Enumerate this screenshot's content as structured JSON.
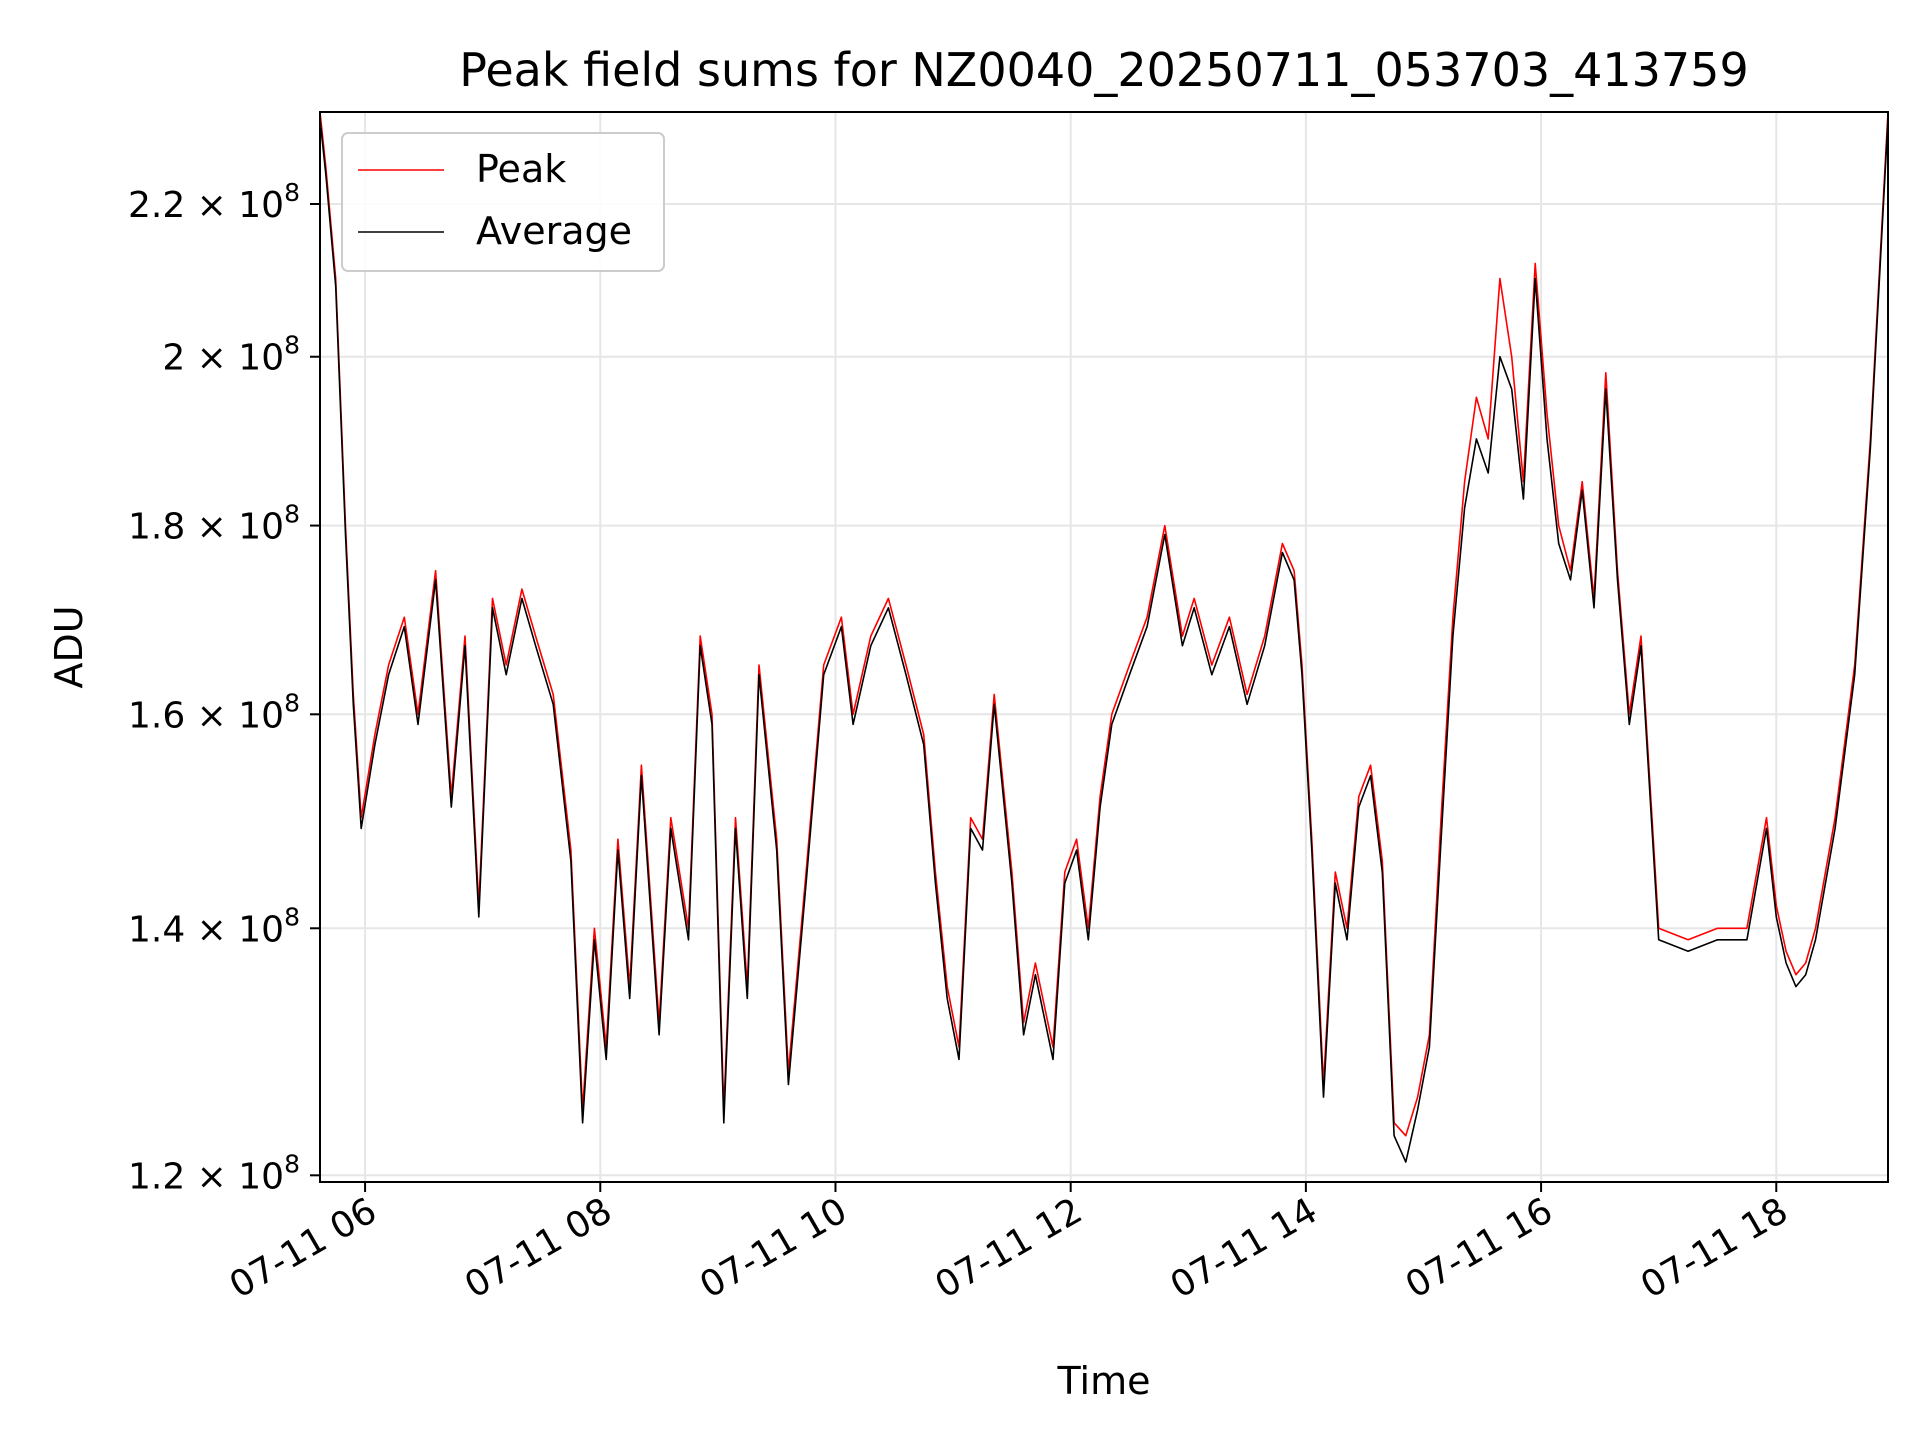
{
  "chart_data": {
    "type": "line",
    "title": "Peak field sums for NZ0040_20250711_053703_413759",
    "xlabel": "Time",
    "ylabel": "ADU",
    "y_scale": "log",
    "ylim": [
      119500000,
      233000000
    ],
    "xlim": [
      "2025-07-11 05:37",
      "2025-07-11 18:57"
    ],
    "x_ticks": [
      "2025-07-11 06:00",
      "2025-07-11 08:00",
      "2025-07-11 10:00",
      "2025-07-11 12:00",
      "2025-07-11 14:00",
      "2025-07-11 16:00",
      "2025-07-11 18:00"
    ],
    "x_tick_labels": [
      "07-11 06",
      "07-11 08",
      "07-11 10",
      "07-11 12",
      "07-11 14",
      "07-11 16",
      "07-11 18"
    ],
    "y_ticks": [
      120000000,
      140000000,
      160000000,
      180000000,
      200000000,
      220000000
    ],
    "y_tick_labels": [
      {
        "mantissa": "1.2",
        "exp": "8"
      },
      {
        "mantissa": "1.4",
        "exp": "8"
      },
      {
        "mantissa": "1.6",
        "exp": "8"
      },
      {
        "mantissa": "1.8",
        "exp": "8"
      },
      {
        "mantissa": "2",
        "exp": "8"
      },
      {
        "mantissa": "2.2",
        "exp": "8"
      }
    ],
    "grid": true,
    "legend_position": "top-left",
    "series": [
      {
        "name": "Peak",
        "color": "#ff0000",
        "x": [
          "2025-07-11 05:37",
          "2025-07-11 05:40",
          "2025-07-11 05:45",
          "2025-07-11 05:50",
          "2025-07-11 05:54",
          "2025-07-11 05:58",
          "2025-07-11 06:05",
          "2025-07-11 06:12",
          "2025-07-11 06:20",
          "2025-07-11 06:27",
          "2025-07-11 06:36",
          "2025-07-11 06:44",
          "2025-07-11 06:51",
          "2025-07-11 06:58",
          "2025-07-11 07:05",
          "2025-07-11 07:12",
          "2025-07-11 07:20",
          "2025-07-11 07:27",
          "2025-07-11 07:36",
          "2025-07-11 07:45",
          "2025-07-11 07:51",
          "2025-07-11 07:57",
          "2025-07-11 08:03",
          "2025-07-11 08:09",
          "2025-07-11 08:15",
          "2025-07-11 08:21",
          "2025-07-11 08:30",
          "2025-07-11 08:36",
          "2025-07-11 08:45",
          "2025-07-11 08:51",
          "2025-07-11 08:57",
          "2025-07-11 09:03",
          "2025-07-11 09:09",
          "2025-07-11 09:15",
          "2025-07-11 09:21",
          "2025-07-11 09:30",
          "2025-07-11 09:36",
          "2025-07-11 09:45",
          "2025-07-11 09:54",
          "2025-07-11 10:03",
          "2025-07-11 10:09",
          "2025-07-11 10:18",
          "2025-07-11 10:27",
          "2025-07-11 10:36",
          "2025-07-11 10:45",
          "2025-07-11 10:51",
          "2025-07-11 10:57",
          "2025-07-11 11:03",
          "2025-07-11 11:09",
          "2025-07-11 11:15",
          "2025-07-11 11:21",
          "2025-07-11 11:30",
          "2025-07-11 11:36",
          "2025-07-11 11:42",
          "2025-07-11 11:51",
          "2025-07-11 11:57",
          "2025-07-11 12:03",
          "2025-07-11 12:09",
          "2025-07-11 12:15",
          "2025-07-11 12:21",
          "2025-07-11 12:30",
          "2025-07-11 12:39",
          "2025-07-11 12:48",
          "2025-07-11 12:57",
          "2025-07-11 13:03",
          "2025-07-11 13:12",
          "2025-07-11 13:21",
          "2025-07-11 13:30",
          "2025-07-11 13:39",
          "2025-07-11 13:48",
          "2025-07-11 13:54",
          "2025-07-11 13:58",
          "2025-07-11 14:03",
          "2025-07-11 14:09",
          "2025-07-11 14:15",
          "2025-07-11 14:21",
          "2025-07-11 14:27",
          "2025-07-11 14:33",
          "2025-07-11 14:39",
          "2025-07-11 14:45",
          "2025-07-11 14:51",
          "2025-07-11 14:57",
          "2025-07-11 15:03",
          "2025-07-11 15:09",
          "2025-07-11 15:15",
          "2025-07-11 15:21",
          "2025-07-11 15:27",
          "2025-07-11 15:33",
          "2025-07-11 15:39",
          "2025-07-11 15:45",
          "2025-07-11 15:51",
          "2025-07-11 15:57",
          "2025-07-11 16:03",
          "2025-07-11 16:09",
          "2025-07-11 16:15",
          "2025-07-11 16:21",
          "2025-07-11 16:27",
          "2025-07-11 16:33",
          "2025-07-11 16:39",
          "2025-07-11 16:45",
          "2025-07-11 16:51",
          "2025-07-11 17:00",
          "2025-07-11 17:15",
          "2025-07-11 17:30",
          "2025-07-11 17:45",
          "2025-07-11 17:55",
          "2025-07-11 18:00",
          "2025-07-11 18:05",
          "2025-07-11 18:10",
          "2025-07-11 18:15",
          "2025-07-11 18:20",
          "2025-07-11 18:30",
          "2025-07-11 18:40",
          "2025-07-11 18:48",
          "2025-07-11 18:57"
        ],
        "values": [
          233000000,
          225000000,
          210000000,
          180000000,
          162000000,
          150000000,
          158000000,
          165000000,
          170000000,
          160000000,
          175000000,
          152000000,
          168000000,
          142000000,
          172000000,
          165000000,
          173000000,
          168000000,
          162000000,
          147000000,
          125000000,
          140000000,
          130000000,
          148000000,
          135000000,
          155000000,
          132000000,
          150000000,
          140000000,
          168000000,
          160000000,
          125000000,
          150000000,
          135000000,
          165000000,
          148000000,
          128000000,
          145000000,
          165000000,
          170000000,
          160000000,
          168000000,
          172000000,
          165000000,
          158000000,
          145000000,
          135000000,
          130000000,
          150000000,
          148000000,
          162000000,
          145000000,
          132000000,
          137000000,
          130000000,
          145000000,
          148000000,
          140000000,
          152000000,
          160000000,
          165000000,
          170000000,
          180000000,
          168000000,
          172000000,
          165000000,
          170000000,
          162000000,
          168000000,
          178000000,
          175000000,
          165000000,
          148000000,
          127000000,
          145000000,
          140000000,
          152000000,
          155000000,
          146000000,
          124000000,
          123000000,
          126000000,
          131000000,
          150000000,
          170000000,
          185000000,
          195000000,
          190000000,
          210000000,
          200000000,
          185000000,
          212000000,
          193000000,
          180000000,
          175000000,
          185000000,
          172000000,
          198000000,
          175000000,
          160000000,
          168000000,
          140000000,
          139000000,
          140000000,
          140000000,
          150000000,
          142000000,
          138000000,
          136000000,
          137000000,
          140000000,
          150000000,
          165000000,
          190000000,
          233000000
        ]
      },
      {
        "name": "Average",
        "color": "#000000",
        "x": [
          "2025-07-11 05:37",
          "2025-07-11 05:40",
          "2025-07-11 05:45",
          "2025-07-11 05:50",
          "2025-07-11 05:54",
          "2025-07-11 05:58",
          "2025-07-11 06:05",
          "2025-07-11 06:12",
          "2025-07-11 06:20",
          "2025-07-11 06:27",
          "2025-07-11 06:36",
          "2025-07-11 06:44",
          "2025-07-11 06:51",
          "2025-07-11 06:58",
          "2025-07-11 07:05",
          "2025-07-11 07:12",
          "2025-07-11 07:20",
          "2025-07-11 07:27",
          "2025-07-11 07:36",
          "2025-07-11 07:45",
          "2025-07-11 07:51",
          "2025-07-11 07:57",
          "2025-07-11 08:03",
          "2025-07-11 08:09",
          "2025-07-11 08:15",
          "2025-07-11 08:21",
          "2025-07-11 08:30",
          "2025-07-11 08:36",
          "2025-07-11 08:45",
          "2025-07-11 08:51",
          "2025-07-11 08:57",
          "2025-07-11 09:03",
          "2025-07-11 09:09",
          "2025-07-11 09:15",
          "2025-07-11 09:21",
          "2025-07-11 09:30",
          "2025-07-11 09:36",
          "2025-07-11 09:45",
          "2025-07-11 09:54",
          "2025-07-11 10:03",
          "2025-07-11 10:09",
          "2025-07-11 10:18",
          "2025-07-11 10:27",
          "2025-07-11 10:36",
          "2025-07-11 10:45",
          "2025-07-11 10:51",
          "2025-07-11 10:57",
          "2025-07-11 11:03",
          "2025-07-11 11:09",
          "2025-07-11 11:15",
          "2025-07-11 11:21",
          "2025-07-11 11:30",
          "2025-07-11 11:36",
          "2025-07-11 11:42",
          "2025-07-11 11:51",
          "2025-07-11 11:57",
          "2025-07-11 12:03",
          "2025-07-11 12:09",
          "2025-07-11 12:15",
          "2025-07-11 12:21",
          "2025-07-11 12:30",
          "2025-07-11 12:39",
          "2025-07-11 12:48",
          "2025-07-11 12:57",
          "2025-07-11 13:03",
          "2025-07-11 13:12",
          "2025-07-11 13:21",
          "2025-07-11 13:30",
          "2025-07-11 13:39",
          "2025-07-11 13:48",
          "2025-07-11 13:54",
          "2025-07-11 13:58",
          "2025-07-11 14:03",
          "2025-07-11 14:09",
          "2025-07-11 14:15",
          "2025-07-11 14:21",
          "2025-07-11 14:27",
          "2025-07-11 14:33",
          "2025-07-11 14:39",
          "2025-07-11 14:45",
          "2025-07-11 14:51",
          "2025-07-11 14:57",
          "2025-07-11 15:03",
          "2025-07-11 15:09",
          "2025-07-11 15:15",
          "2025-07-11 15:21",
          "2025-07-11 15:27",
          "2025-07-11 15:33",
          "2025-07-11 15:39",
          "2025-07-11 15:45",
          "2025-07-11 15:51",
          "2025-07-11 15:57",
          "2025-07-11 16:03",
          "2025-07-11 16:09",
          "2025-07-11 16:15",
          "2025-07-11 16:21",
          "2025-07-11 16:27",
          "2025-07-11 16:33",
          "2025-07-11 16:39",
          "2025-07-11 16:45",
          "2025-07-11 16:51",
          "2025-07-11 17:00",
          "2025-07-11 17:15",
          "2025-07-11 17:30",
          "2025-07-11 17:45",
          "2025-07-11 17:55",
          "2025-07-11 18:00",
          "2025-07-11 18:05",
          "2025-07-11 18:10",
          "2025-07-11 18:15",
          "2025-07-11 18:20",
          "2025-07-11 18:30",
          "2025-07-11 18:40",
          "2025-07-11 18:48",
          "2025-07-11 18:57"
        ],
        "values": [
          232000000,
          224000000,
          209000000,
          179000000,
          161000000,
          149000000,
          157000000,
          164000000,
          169000000,
          159000000,
          174000000,
          151000000,
          167000000,
          141000000,
          171000000,
          164000000,
          172000000,
          167000000,
          161000000,
          146000000,
          124000000,
          139000000,
          129000000,
          147000000,
          134000000,
          154000000,
          131000000,
          149000000,
          139000000,
          167000000,
          159000000,
          124000000,
          149000000,
          134000000,
          164000000,
          147000000,
          127000000,
          144000000,
          164000000,
          169000000,
          159000000,
          167000000,
          171000000,
          164000000,
          157000000,
          144000000,
          134000000,
          129000000,
          149000000,
          147000000,
          161000000,
          144000000,
          131000000,
          136000000,
          129000000,
          144000000,
          147000000,
          139000000,
          151000000,
          159000000,
          164000000,
          169000000,
          179000000,
          167000000,
          171000000,
          164000000,
          169000000,
          161000000,
          167000000,
          177000000,
          174000000,
          164000000,
          147000000,
          126000000,
          144000000,
          139000000,
          151000000,
          154000000,
          145000000,
          123000000,
          121000000,
          125000000,
          130000000,
          148000000,
          168000000,
          182000000,
          190000000,
          186000000,
          200000000,
          196000000,
          183000000,
          210000000,
          190000000,
          178000000,
          174000000,
          184000000,
          171000000,
          196000000,
          174000000,
          159000000,
          167000000,
          139000000,
          138000000,
          139000000,
          139000000,
          149000000,
          141000000,
          137000000,
          135000000,
          136000000,
          139000000,
          149000000,
          164000000,
          189000000,
          232000000
        ]
      }
    ]
  }
}
